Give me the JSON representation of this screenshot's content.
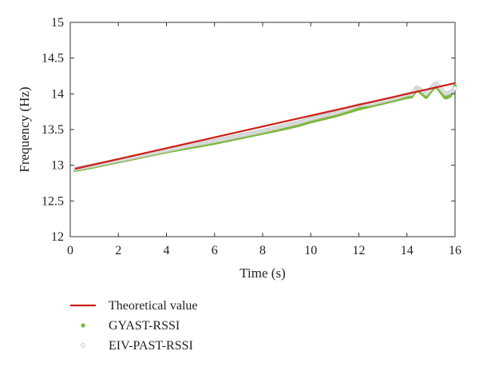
{
  "chart_data": {
    "type": "line",
    "title": "",
    "xlabel": "Time (s)",
    "ylabel": "Frequency (Hz)",
    "xlim": [
      0,
      16
    ],
    "ylim": [
      12,
      15
    ],
    "xticks": [
      0,
      2,
      4,
      6,
      8,
      10,
      12,
      14,
      16
    ],
    "yticks": [
      12,
      12.5,
      13,
      13.5,
      14,
      14.5,
      15
    ],
    "grid": false,
    "legend_position": "below-left",
    "series": [
      {
        "name": "Theoretical value",
        "style": "line",
        "color": "#cc1f1a",
        "x": [
          0.2,
          16
        ],
        "y": [
          12.95,
          14.15
        ]
      },
      {
        "name": "GYAST-RSSI",
        "style": "points",
        "color": "#7cb83a",
        "x": [
          0.2,
          1,
          2,
          3,
          4,
          5,
          6,
          7,
          8,
          9,
          9.5,
          10,
          10.5,
          11,
          11.5,
          12,
          12.5,
          13,
          13.5,
          14,
          14.2,
          14.4,
          14.6,
          14.8,
          15,
          15.2,
          15.4,
          15.6,
          15.8,
          16
        ],
        "y": [
          12.94,
          12.99,
          13.06,
          13.13,
          13.2,
          13.26,
          13.32,
          13.39,
          13.46,
          13.53,
          13.57,
          13.62,
          13.66,
          13.7,
          13.75,
          13.8,
          13.84,
          13.88,
          13.92,
          13.96,
          13.97,
          14.07,
          14.02,
          13.96,
          14.05,
          14.12,
          14.04,
          13.95,
          13.98,
          14.12
        ]
      },
      {
        "name": "EIV-PAST-RSSI",
        "style": "points",
        "color": "#c8c8c8",
        "x": [
          0.2,
          1,
          2,
          3,
          4,
          5,
          6,
          7,
          8,
          9,
          9.5,
          10,
          10.5,
          11,
          11.5,
          12,
          12.5,
          13,
          13.5,
          14,
          14.2,
          14.4,
          14.6,
          14.8,
          15,
          15.2,
          15.4,
          15.6,
          15.8,
          16
        ],
        "y": [
          12.95,
          13.0,
          13.07,
          13.14,
          13.21,
          13.28,
          13.34,
          13.41,
          13.48,
          13.56,
          13.6,
          13.65,
          13.69,
          13.73,
          13.78,
          13.84,
          13.86,
          13.9,
          13.94,
          13.99,
          14.0,
          14.09,
          14.05,
          14.0,
          14.08,
          14.15,
          14.08,
          14.0,
          14.02,
          14.08
        ]
      }
    ]
  }
}
